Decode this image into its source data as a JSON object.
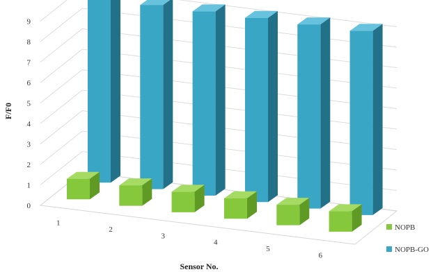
{
  "chart_data": {
    "type": "bar",
    "title": "",
    "xlabel": "Sensor No.",
    "ylabel": "F/F0",
    "categories": [
      "1",
      "2",
      "3",
      "4",
      "5",
      "6"
    ],
    "ylim": [
      0,
      9
    ],
    "yticks": [
      "0",
      "1",
      "2",
      "3",
      "4",
      "5",
      "6",
      "7",
      "8",
      "9"
    ],
    "grid": true,
    "legend_position": "right",
    "series": [
      {
        "name": "NOPB",
        "values": [
          1.0,
          1.0,
          1.0,
          1.0,
          1.0,
          1.0
        ]
      },
      {
        "name": "NOPB-GO",
        "values": [
          9.0,
          9.0,
          9.0,
          9.0,
          9.0,
          9.0
        ]
      }
    ],
    "colors": {
      "NOPB": {
        "front": "#86c83c",
        "top": "#a6db63",
        "side": "#5f9a24"
      },
      "NOPB-GO": {
        "front": "#3aa6c6",
        "top": "#67c3dd",
        "side": "#227189"
      }
    }
  }
}
